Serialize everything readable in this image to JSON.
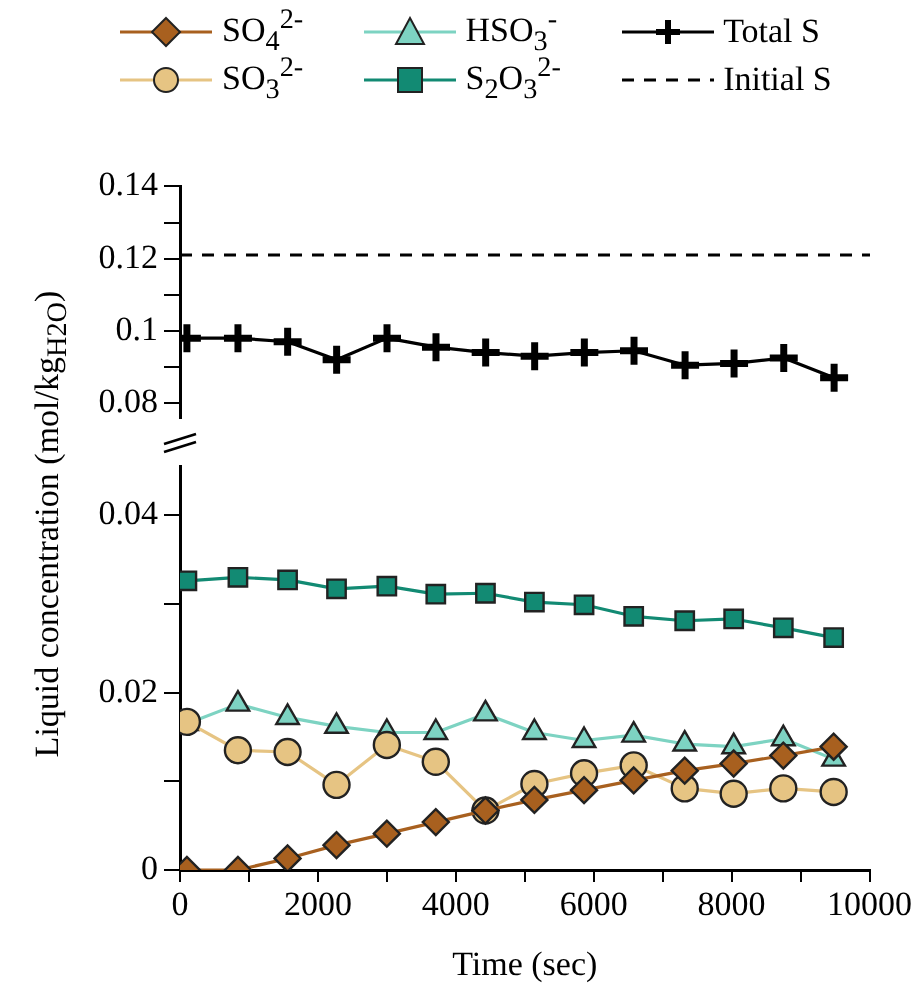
{
  "chart_data": [
    {
      "type": "line",
      "ylabel": "Liquid concentration (mol/kg$_{H2O}$)",
      "xlim": [
        0,
        10000
      ],
      "ylim": [
        0.076,
        0.14
      ],
      "yticks": [
        {
          "value": 0.08,
          "label": "0.08"
        },
        {
          "value": 0.09,
          "label": null
        },
        {
          "value": 0.1,
          "label": "0.1"
        },
        {
          "value": 0.11,
          "label": null
        },
        {
          "value": 0.12,
          "label": "0.12"
        },
        {
          "value": 0.13,
          "label": null
        },
        {
          "value": 0.14,
          "label": "0.14"
        }
      ],
      "tick_labels": "y",
      "grid": false,
      "legend": "top",
      "ref_lines": [
        {
          "axis": "y",
          "value": 0.121,
          "label": "Initial S",
          "color": "#000000",
          "line_style": "dashed"
        }
      ],
      "series": [
        {
          "name": "Total S",
          "color": "#000000",
          "marker": "cross",
          "x": [
            100,
            840,
            1560,
            2270,
            3000,
            3710,
            4430,
            5140,
            5860,
            6580,
            7320,
            8030,
            8750,
            9480
          ],
          "values": [
            0.098,
            0.098,
            0.097,
            0.092,
            0.098,
            0.0955,
            0.094,
            0.093,
            0.094,
            0.0945,
            0.0905,
            0.091,
            0.0925,
            0.087
          ]
        }
      ]
    },
    {
      "type": "line",
      "xlabel": "Time (sec)",
      "xlim": [
        0,
        10000
      ],
      "ylim": [
        0,
        0.0455
      ],
      "xticks": [
        0,
        {
          "value": 1000,
          "label": null
        },
        2000,
        {
          "value": 3000,
          "label": null
        },
        4000,
        {
          "value": 5000,
          "label": null
        },
        6000,
        {
          "value": 7000,
          "label": null
        },
        8000,
        {
          "value": 9000,
          "label": null
        },
        10000
      ],
      "yticks": [
        0,
        {
          "value": 0.01,
          "label": null
        },
        {
          "value": 0.02,
          "label": "0.02"
        },
        {
          "value": 0.03,
          "label": null
        },
        {
          "value": 0.04,
          "label": "0.04"
        }
      ],
      "grid": false,
      "legend": "top",
      "series": [
        {
          "name": "SO$_{4}$$^{2-}$",
          "color": "#a8601f",
          "marker": "diamond",
          "x": [
            100,
            840,
            1560,
            2270,
            3000,
            3710,
            4430,
            5140,
            5860,
            6580,
            7320,
            8030,
            8750,
            9480
          ],
          "values": [
            0.0,
            0.0,
            0.0013,
            0.0028,
            0.0041,
            0.0054,
            0.0067,
            0.0079,
            0.009,
            0.0101,
            0.0112,
            0.012,
            0.0129,
            0.0139
          ]
        },
        {
          "name": "SO$_{3}$$^{2-}$",
          "color": "#e6c483",
          "marker": "circle",
          "x": [
            100,
            840,
            1560,
            2270,
            3000,
            3710,
            4430,
            5140,
            5860,
            6580,
            7320,
            8030,
            8750,
            9480
          ],
          "values": [
            0.0167,
            0.0135,
            0.0133,
            0.0096,
            0.0141,
            0.0122,
            0.0067,
            0.0097,
            0.0109,
            0.0118,
            0.0092,
            0.0086,
            0.0092,
            0.0088
          ]
        },
        {
          "name": "HSO$_{3}$$^{-}$",
          "color": "#7dd3c2",
          "marker": "triangle",
          "x": [
            100,
            840,
            1560,
            2270,
            3000,
            3710,
            4430,
            5140,
            5860,
            6580,
            7320,
            8030,
            8750,
            9480
          ],
          "values": [
            0.0165,
            0.0187,
            0.0172,
            0.0162,
            0.0155,
            0.0155,
            0.0176,
            0.0155,
            0.0146,
            0.0152,
            0.0142,
            0.0139,
            0.0148,
            0.0125
          ]
        },
        {
          "name": "S$_{2}$O$_{3}$$^{2-}$",
          "color": "#128a73",
          "marker": "square",
          "x": [
            100,
            840,
            1560,
            2270,
            3000,
            3710,
            4430,
            5140,
            5860,
            6580,
            7320,
            8030,
            8750,
            9480
          ],
          "values": [
            0.0326,
            0.033,
            0.0327,
            0.0317,
            0.032,
            0.0311,
            0.0312,
            0.0302,
            0.0299,
            0.0286,
            0.0281,
            0.0283,
            0.0273,
            0.0262
          ]
        }
      ]
    }
  ]
}
